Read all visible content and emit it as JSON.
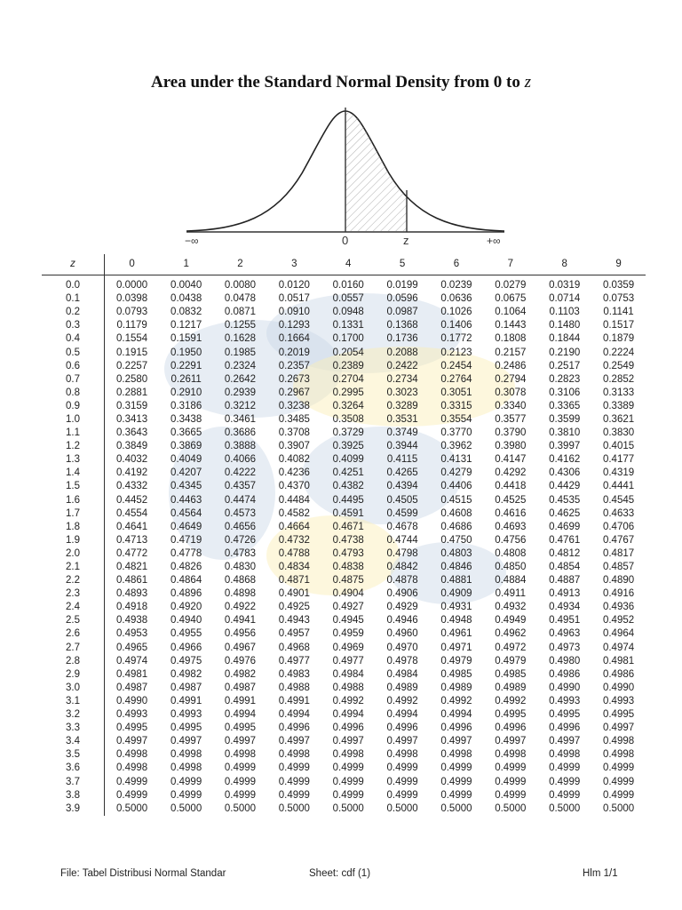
{
  "title": {
    "text": "Area under the Standard Normal Density from 0 to ",
    "var": "z"
  },
  "diagram": {
    "left_label": "−∞",
    "center_label": "0",
    "z_label": "z",
    "right_label": "+∞"
  },
  "table": {
    "z_header": "z",
    "col_headers": [
      "0",
      "1",
      "2",
      "3",
      "4",
      "5",
      "6",
      "7",
      "8",
      "9"
    ],
    "rows": [
      [
        "0.0",
        "0.0000",
        "0.0040",
        "0.0080",
        "0.0120",
        "0.0160",
        "0.0199",
        "0.0239",
        "0.0279",
        "0.0319",
        "0.0359"
      ],
      [
        "0.1",
        "0.0398",
        "0.0438",
        "0.0478",
        "0.0517",
        "0.0557",
        "0.0596",
        "0.0636",
        "0.0675",
        "0.0714",
        "0.0753"
      ],
      [
        "0.2",
        "0.0793",
        "0.0832",
        "0.0871",
        "0.0910",
        "0.0948",
        "0.0987",
        "0.1026",
        "0.1064",
        "0.1103",
        "0.1141"
      ],
      [
        "0.3",
        "0.1179",
        "0.1217",
        "0.1255",
        "0.1293",
        "0.1331",
        "0.1368",
        "0.1406",
        "0.1443",
        "0.1480",
        "0.1517"
      ],
      [
        "0.4",
        "0.1554",
        "0.1591",
        "0.1628",
        "0.1664",
        "0.1700",
        "0.1736",
        "0.1772",
        "0.1808",
        "0.1844",
        "0.1879"
      ],
      [
        "0.5",
        "0.1915",
        "0.1950",
        "0.1985",
        "0.2019",
        "0.2054",
        "0.2088",
        "0.2123",
        "0.2157",
        "0.2190",
        "0.2224"
      ],
      [
        "0.6",
        "0.2257",
        "0.2291",
        "0.2324",
        "0.2357",
        "0.2389",
        "0.2422",
        "0.2454",
        "0.2486",
        "0.2517",
        "0.2549"
      ],
      [
        "0.7",
        "0.2580",
        "0.2611",
        "0.2642",
        "0.2673",
        "0.2704",
        "0.2734",
        "0.2764",
        "0.2794",
        "0.2823",
        "0.2852"
      ],
      [
        "0.8",
        "0.2881",
        "0.2910",
        "0.2939",
        "0.2967",
        "0.2995",
        "0.3023",
        "0.3051",
        "0.3078",
        "0.3106",
        "0.3133"
      ],
      [
        "0.9",
        "0.3159",
        "0.3186",
        "0.3212",
        "0.3238",
        "0.3264",
        "0.3289",
        "0.3315",
        "0.3340",
        "0.3365",
        "0.3389"
      ],
      [
        "1.0",
        "0.3413",
        "0.3438",
        "0.3461",
        "0.3485",
        "0.3508",
        "0.3531",
        "0.3554",
        "0.3577",
        "0.3599",
        "0.3621"
      ],
      [
        "1.1",
        "0.3643",
        "0.3665",
        "0.3686",
        "0.3708",
        "0.3729",
        "0.3749",
        "0.3770",
        "0.3790",
        "0.3810",
        "0.3830"
      ],
      [
        "1.2",
        "0.3849",
        "0.3869",
        "0.3888",
        "0.3907",
        "0.3925",
        "0.3944",
        "0.3962",
        "0.3980",
        "0.3997",
        "0.4015"
      ],
      [
        "1.3",
        "0.4032",
        "0.4049",
        "0.4066",
        "0.4082",
        "0.4099",
        "0.4115",
        "0.4131",
        "0.4147",
        "0.4162",
        "0.4177"
      ],
      [
        "1.4",
        "0.4192",
        "0.4207",
        "0.4222",
        "0.4236",
        "0.4251",
        "0.4265",
        "0.4279",
        "0.4292",
        "0.4306",
        "0.4319"
      ],
      [
        "1.5",
        "0.4332",
        "0.4345",
        "0.4357",
        "0.4370",
        "0.4382",
        "0.4394",
        "0.4406",
        "0.4418",
        "0.4429",
        "0.4441"
      ],
      [
        "1.6",
        "0.4452",
        "0.4463",
        "0.4474",
        "0.4484",
        "0.4495",
        "0.4505",
        "0.4515",
        "0.4525",
        "0.4535",
        "0.4545"
      ],
      [
        "1.7",
        "0.4554",
        "0.4564",
        "0.4573",
        "0.4582",
        "0.4591",
        "0.4599",
        "0.4608",
        "0.4616",
        "0.4625",
        "0.4633"
      ],
      [
        "1.8",
        "0.4641",
        "0.4649",
        "0.4656",
        "0.4664",
        "0.4671",
        "0.4678",
        "0.4686",
        "0.4693",
        "0.4699",
        "0.4706"
      ],
      [
        "1.9",
        "0.4713",
        "0.4719",
        "0.4726",
        "0.4732",
        "0.4738",
        "0.4744",
        "0.4750",
        "0.4756",
        "0.4761",
        "0.4767"
      ],
      [
        "2.0",
        "0.4772",
        "0.4778",
        "0.4783",
        "0.4788",
        "0.4793",
        "0.4798",
        "0.4803",
        "0.4808",
        "0.4812",
        "0.4817"
      ],
      [
        "2.1",
        "0.4821",
        "0.4826",
        "0.4830",
        "0.4834",
        "0.4838",
        "0.4842",
        "0.4846",
        "0.4850",
        "0.4854",
        "0.4857"
      ],
      [
        "2.2",
        "0.4861",
        "0.4864",
        "0.4868",
        "0.4871",
        "0.4875",
        "0.4878",
        "0.4881",
        "0.4884",
        "0.4887",
        "0.4890"
      ],
      [
        "2.3",
        "0.4893",
        "0.4896",
        "0.4898",
        "0.4901",
        "0.4904",
        "0.4906",
        "0.4909",
        "0.4911",
        "0.4913",
        "0.4916"
      ],
      [
        "2.4",
        "0.4918",
        "0.4920",
        "0.4922",
        "0.4925",
        "0.4927",
        "0.4929",
        "0.4931",
        "0.4932",
        "0.4934",
        "0.4936"
      ],
      [
        "2.5",
        "0.4938",
        "0.4940",
        "0.4941",
        "0.4943",
        "0.4945",
        "0.4946",
        "0.4948",
        "0.4949",
        "0.4951",
        "0.4952"
      ],
      [
        "2.6",
        "0.4953",
        "0.4955",
        "0.4956",
        "0.4957",
        "0.4959",
        "0.4960",
        "0.4961",
        "0.4962",
        "0.4963",
        "0.4964"
      ],
      [
        "2.7",
        "0.4965",
        "0.4966",
        "0.4967",
        "0.4968",
        "0.4969",
        "0.4970",
        "0.4971",
        "0.4972",
        "0.4973",
        "0.4974"
      ],
      [
        "2.8",
        "0.4974",
        "0.4975",
        "0.4976",
        "0.4977",
        "0.4977",
        "0.4978",
        "0.4979",
        "0.4979",
        "0.4980",
        "0.4981"
      ],
      [
        "2.9",
        "0.4981",
        "0.4982",
        "0.4982",
        "0.4983",
        "0.4984",
        "0.4984",
        "0.4985",
        "0.4985",
        "0.4986",
        "0.4986"
      ],
      [
        "3.0",
        "0.4987",
        "0.4987",
        "0.4987",
        "0.4988",
        "0.4988",
        "0.4989",
        "0.4989",
        "0.4989",
        "0.4990",
        "0.4990"
      ],
      [
        "3.1",
        "0.4990",
        "0.4991",
        "0.4991",
        "0.4991",
        "0.4992",
        "0.4992",
        "0.4992",
        "0.4992",
        "0.4993",
        "0.4993"
      ],
      [
        "3.2",
        "0.4993",
        "0.4993",
        "0.4994",
        "0.4994",
        "0.4994",
        "0.4994",
        "0.4994",
        "0.4995",
        "0.4995",
        "0.4995"
      ],
      [
        "3.3",
        "0.4995",
        "0.4995",
        "0.4995",
        "0.4996",
        "0.4996",
        "0.4996",
        "0.4996",
        "0.4996",
        "0.4996",
        "0.4997"
      ],
      [
        "3.4",
        "0.4997",
        "0.4997",
        "0.4997",
        "0.4997",
        "0.4997",
        "0.4997",
        "0.4997",
        "0.4997",
        "0.4997",
        "0.4998"
      ],
      [
        "3.5",
        "0.4998",
        "0.4998",
        "0.4998",
        "0.4998",
        "0.4998",
        "0.4998",
        "0.4998",
        "0.4998",
        "0.4998",
        "0.4998"
      ],
      [
        "3.6",
        "0.4998",
        "0.4998",
        "0.4999",
        "0.4999",
        "0.4999",
        "0.4999",
        "0.4999",
        "0.4999",
        "0.4999",
        "0.4999"
      ],
      [
        "3.7",
        "0.4999",
        "0.4999",
        "0.4999",
        "0.4999",
        "0.4999",
        "0.4999",
        "0.4999",
        "0.4999",
        "0.4999",
        "0.4999"
      ],
      [
        "3.8",
        "0.4999",
        "0.4999",
        "0.4999",
        "0.4999",
        "0.4999",
        "0.4999",
        "0.4999",
        "0.4999",
        "0.4999",
        "0.4999"
      ],
      [
        "3.9",
        "0.5000",
        "0.5000",
        "0.5000",
        "0.5000",
        "0.5000",
        "0.5000",
        "0.5000",
        "0.5000",
        "0.5000",
        "0.5000"
      ]
    ]
  },
  "footer": {
    "file": "File: Tabel Distribusi Normal Standar",
    "sheet": "Sheet: cdf (1)",
    "page": "Hlm 1/1"
  },
  "watermark_colors": {
    "blue": "#c9d6e6",
    "yellow": "#fbeeb4"
  }
}
